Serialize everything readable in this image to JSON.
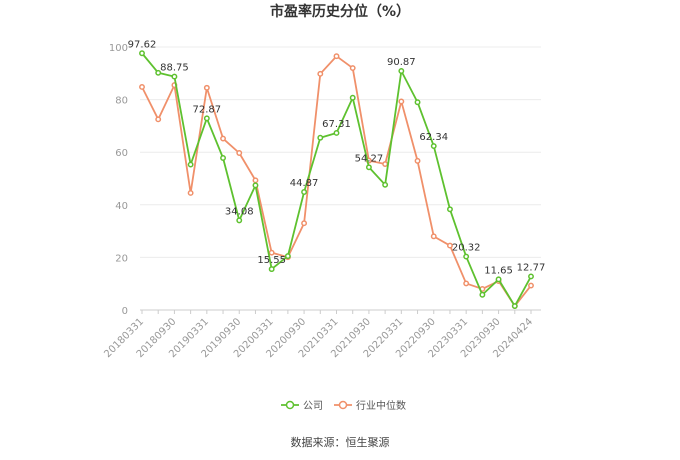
{
  "chart_data": {
    "type": "line",
    "title": "市盈率历史分位（%）",
    "source": "数据来源：恒生聚源",
    "ylim": [
      0,
      100
    ],
    "yticks": [
      0,
      20,
      40,
      60,
      80,
      100
    ],
    "x_tick_labels": [
      "20180331",
      "20180930",
      "20190331",
      "20190930",
      "20200331",
      "20200930",
      "20210331",
      "20210930",
      "20220331",
      "20220930",
      "20230331",
      "20230930",
      "20240424"
    ],
    "x_count": 25,
    "grid": true,
    "legend_position": "bottom",
    "series": [
      {
        "name": "公司",
        "color": "#5ec12f",
        "values": [
          97.62,
          90.2,
          88.75,
          55.3,
          72.87,
          57.8,
          34.08,
          47.4,
          15.55,
          20.5,
          44.87,
          65.5,
          67.31,
          80.7,
          54.27,
          47.6,
          90.87,
          79.0,
          62.34,
          38.3,
          20.32,
          5.8,
          11.65,
          1.5,
          12.77
        ]
      },
      {
        "name": "行业中位数",
        "color": "#f0906a",
        "values": [
          84.8,
          72.5,
          85.5,
          44.5,
          84.5,
          65.2,
          59.7,
          49.3,
          21.8,
          20.1,
          33.0,
          89.8,
          96.5,
          92.0,
          56.8,
          55.5,
          79.3,
          56.7,
          28.0,
          24.5,
          10.1,
          8.0,
          11.0,
          1.5,
          9.3
        ]
      }
    ],
    "data_labels": [
      {
        "series": 0,
        "index": 0,
        "text": "97.62"
      },
      {
        "series": 0,
        "index": 2,
        "text": "88.75"
      },
      {
        "series": 0,
        "index": 4,
        "text": "72.87"
      },
      {
        "series": 0,
        "index": 6,
        "text": "34.08"
      },
      {
        "series": 0,
        "index": 8,
        "text": "15.55"
      },
      {
        "series": 0,
        "index": 10,
        "text": "44.87"
      },
      {
        "series": 0,
        "index": 12,
        "text": "67.31"
      },
      {
        "series": 0,
        "index": 14,
        "text": "54.27"
      },
      {
        "series": 0,
        "index": 16,
        "text": "90.87"
      },
      {
        "series": 0,
        "index": 18,
        "text": "62.34"
      },
      {
        "series": 0,
        "index": 20,
        "text": "20.32"
      },
      {
        "series": 0,
        "index": 22,
        "text": "11.65"
      },
      {
        "series": 0,
        "index": 24,
        "text": "12.77"
      }
    ]
  }
}
